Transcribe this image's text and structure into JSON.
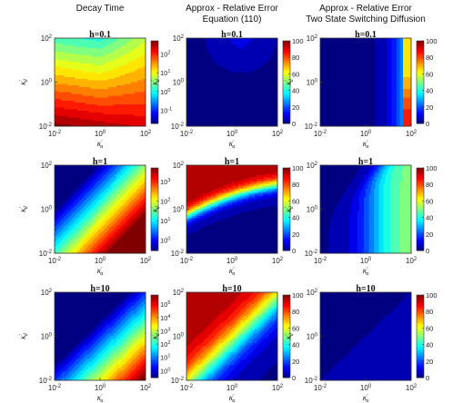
{
  "column_titles": [
    [
      "Decay Time"
    ],
    [
      "Approx - Relative Error",
      "Equation (110)"
    ],
    [
      "Approx - Relative Error",
      "Two State Switching Diffusion"
    ]
  ],
  "chart_data": [
    {
      "type": "heatmap",
      "panel": "decay-h0.1",
      "title": "h=0.1",
      "xlabel": "κ'a",
      "ylabel": "κ'd",
      "xlim": [
        0.01,
        100
      ],
      "ylim": [
        0.01,
        100
      ],
      "xscale": "log",
      "yscale": "log",
      "xticks": [
        "10-2",
        "100",
        "102"
      ],
      "yticks": [
        "10-2",
        "100",
        "102"
      ],
      "colorbar": {
        "scale": "log",
        "ticks": [
          "10-1",
          "100",
          "101",
          "102"
        ],
        "range": [
          0.02,
          500
        ]
      }
    },
    {
      "type": "heatmap",
      "panel": "eq110-h0.1",
      "title": "h=0.1",
      "xlabel": "κ'a",
      "ylabel": "κ'd",
      "xlim": [
        0.01,
        100
      ],
      "ylim": [
        0.01,
        100
      ],
      "xscale": "log",
      "yscale": "log",
      "xticks": [
        "10-2",
        "100",
        "102"
      ],
      "yticks": [
        "10-2",
        "100",
        "102"
      ],
      "colorbar": {
        "scale": "linear",
        "ticks": [
          "0",
          "20",
          "40",
          "60",
          "80",
          "100"
        ],
        "range": [
          0,
          100
        ]
      }
    },
    {
      "type": "heatmap",
      "panel": "two-state-h0.1",
      "title": "h=0.1",
      "xlabel": "κ'a",
      "ylabel": "κ'd",
      "xlim": [
        0.01,
        100
      ],
      "ylim": [
        0.01,
        100
      ],
      "xscale": "log",
      "yscale": "log",
      "xticks": [
        "10-2",
        "100",
        "102"
      ],
      "yticks": [
        "10-2",
        "100",
        "102"
      ],
      "colorbar": {
        "scale": "linear",
        "ticks": [
          "0",
          "20",
          "40",
          "60",
          "80",
          "100"
        ],
        "range": [
          0,
          100
        ]
      }
    },
    {
      "type": "heatmap",
      "panel": "decay-h1",
      "title": "h=1",
      "xlabel": "κ'a",
      "ylabel": "κ'd",
      "xlim": [
        0.01,
        100
      ],
      "ylim": [
        0.01,
        100
      ],
      "xscale": "log",
      "yscale": "log",
      "xticks": [
        "10-2",
        "100",
        "102"
      ],
      "yticks": [
        "10-2",
        "100",
        "102"
      ],
      "colorbar": {
        "scale": "log",
        "ticks": [
          "100",
          "101",
          "102",
          "103"
        ],
        "range": [
          0.3,
          5000
        ]
      }
    },
    {
      "type": "heatmap",
      "panel": "eq110-h1",
      "title": "h=1",
      "xlabel": "κ'a",
      "ylabel": "κ'd",
      "xlim": [
        0.01,
        100
      ],
      "ylim": [
        0.01,
        100
      ],
      "xscale": "log",
      "yscale": "log",
      "xticks": [
        "10-2",
        "100",
        "102"
      ],
      "yticks": [
        "10-2",
        "100",
        "102"
      ],
      "colorbar": {
        "scale": "linear",
        "ticks": [
          "0",
          "20",
          "40",
          "60",
          "80",
          "100"
        ],
        "range": [
          0,
          100
        ]
      }
    },
    {
      "type": "heatmap",
      "panel": "two-state-h1",
      "title": "h=1",
      "xlabel": "κ'a",
      "ylabel": "κ'd",
      "xlim": [
        0.01,
        100
      ],
      "ylim": [
        0.01,
        100
      ],
      "xscale": "log",
      "yscale": "log",
      "xticks": [
        "10-2",
        "100",
        "102"
      ],
      "yticks": [
        "10-2",
        "100",
        "102"
      ],
      "colorbar": {
        "scale": "linear",
        "ticks": [
          "0",
          "20",
          "40",
          "60",
          "80",
          "100"
        ],
        "range": [
          0,
          100
        ]
      }
    },
    {
      "type": "heatmap",
      "panel": "decay-h10",
      "title": "h=10",
      "xlabel": "κ'a",
      "ylabel": "κ'd",
      "xlim": [
        0.01,
        100
      ],
      "ylim": [
        0.01,
        100
      ],
      "xscale": "log",
      "yscale": "log",
      "xticks": [
        "10-2",
        "100",
        "102"
      ],
      "yticks": [
        "10-2",
        "100",
        "102"
      ],
      "colorbar": {
        "scale": "log",
        "ticks": [
          "100",
          "101",
          "102",
          "103",
          "104",
          "105"
        ],
        "range": [
          0.3,
          500000
        ]
      }
    },
    {
      "type": "heatmap",
      "panel": "eq110-h10",
      "title": "h=10",
      "xlabel": "κ'a",
      "ylabel": "κ'd",
      "xlim": [
        0.01,
        100
      ],
      "ylim": [
        0.01,
        100
      ],
      "xscale": "log",
      "yscale": "log",
      "xticks": [
        "10-2",
        "100",
        "102"
      ],
      "yticks": [
        "10-2",
        "100",
        "102"
      ],
      "colorbar": {
        "scale": "linear",
        "ticks": [
          "0",
          "20",
          "40",
          "60",
          "80",
          "100"
        ],
        "range": [
          0,
          100
        ]
      }
    },
    {
      "type": "heatmap",
      "panel": "two-state-h10",
      "title": "h=10",
      "xlabel": "κ'a",
      "ylabel": "κ'd",
      "xlim": [
        0.01,
        100
      ],
      "ylim": [
        0.01,
        100
      ],
      "xscale": "log",
      "yscale": "log",
      "xticks": [
        "10-2",
        "100",
        "102"
      ],
      "yticks": [
        "10-2",
        "100",
        "102"
      ],
      "colorbar": {
        "scale": "linear",
        "ticks": [
          "0",
          "20",
          "40",
          "60",
          "80",
          "100"
        ],
        "range": [
          0,
          100
        ]
      }
    }
  ]
}
